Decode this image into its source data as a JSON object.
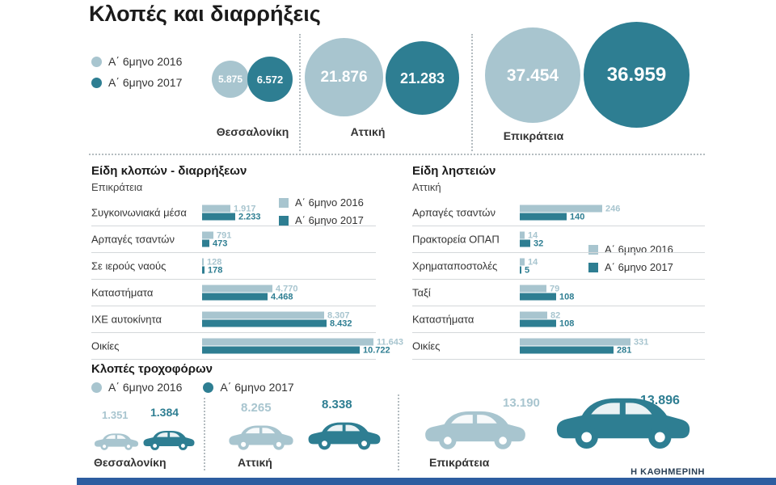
{
  "title": "Κλοπές και διαρρήξεις",
  "legend": {
    "y2016": "Α΄ 6μηνο 2016",
    "y2017": "Α΄ 6μηνο 2017"
  },
  "colors": {
    "light": "#a8c5cf",
    "dark": "#2e7e92",
    "separator": "#b4bcc0",
    "footer_bar": "#2d5da0"
  },
  "bubbles": {
    "groups": [
      {
        "label": "Θεσσαλονίκη",
        "v2016": "5.875",
        "v2017": "6.572"
      },
      {
        "label": "Αττική",
        "v2016": "21.876",
        "v2017": "21.283"
      },
      {
        "label": "Επικράτεια",
        "v2016": "37.454",
        "v2017": "36.959"
      }
    ]
  },
  "vehicles": {
    "groups": [
      {
        "label": "Θεσσαλονίκη",
        "v2016": "1.351",
        "v2017": "1.384"
      },
      {
        "label": "Αττική",
        "v2016": "8.265",
        "v2017": "8.338"
      },
      {
        "label": "Επικράτεια",
        "v2016": "13.190",
        "v2017": "13.896"
      }
    ]
  },
  "footer": "Η ΚΑΘΗΜΕΡΙΝΗ",
  "chart_data": [
    {
      "type": "bubble",
      "title": "Κλοπές και διαρρήξεις",
      "categories": [
        "Θεσσαλονίκη",
        "Αττική",
        "Επικράτεια"
      ],
      "series": [
        {
          "name": "Α΄ 6μηνο 2016",
          "values": [
            5875,
            21876,
            37454
          ]
        },
        {
          "name": "Α΄ 6μηνο 2017",
          "values": [
            6572,
            21283,
            36959
          ]
        }
      ],
      "legend_position": "left"
    },
    {
      "type": "bar",
      "title": "Είδη κλοπών - διαρρήξεων",
      "subtitle": "Επικράτεια",
      "orientation": "horizontal",
      "categories": [
        "Συγκοινωνιακά μέσα",
        "Αρπαγές τσαντών",
        "Σε ιερούς ναούς",
        "Καταστήματα",
        "ΙΧΕ αυτοκίνητα",
        "Οικίες"
      ],
      "series": [
        {
          "name": "Α΄ 6μηνο 2016",
          "values": [
            1917,
            791,
            128,
            4770,
            8307,
            11643
          ]
        },
        {
          "name": "Α΄ 6μηνο 2017",
          "values": [
            2233,
            473,
            178,
            4468,
            8432,
            10722
          ]
        }
      ],
      "xlim": [
        0,
        11643
      ],
      "legend_position": "top-right"
    },
    {
      "type": "bar",
      "title": "Είδη ληστειών",
      "subtitle": "Αττική",
      "orientation": "horizontal",
      "categories": [
        "Αρπαγές τσαντών",
        "Πρακτορεία ΟΠΑΠ",
        "Χρηματαποστολές",
        "Ταξί",
        "Καταστήματα",
        "Οικίες"
      ],
      "series": [
        {
          "name": "Α΄ 6μηνο 2016",
          "values": [
            246,
            14,
            14,
            79,
            82,
            331
          ]
        },
        {
          "name": "Α΄ 6μηνο 2017",
          "values": [
            140,
            32,
            5,
            108,
            108,
            281
          ]
        }
      ],
      "xlim": [
        0,
        331
      ],
      "legend_position": "middle-right"
    },
    {
      "type": "pictogram",
      "title": "Κλοπές τροχοφόρων",
      "icon": "car-icon",
      "categories": [
        "Θεσσαλονίκη",
        "Αττική",
        "Επικράτεια"
      ],
      "series": [
        {
          "name": "Α΄ 6μηνο 2016",
          "values": [
            1351,
            8265,
            13190
          ]
        },
        {
          "name": "Α΄ 6μηνο 2017",
          "values": [
            1384,
            8338,
            13896
          ]
        }
      ]
    }
  ]
}
